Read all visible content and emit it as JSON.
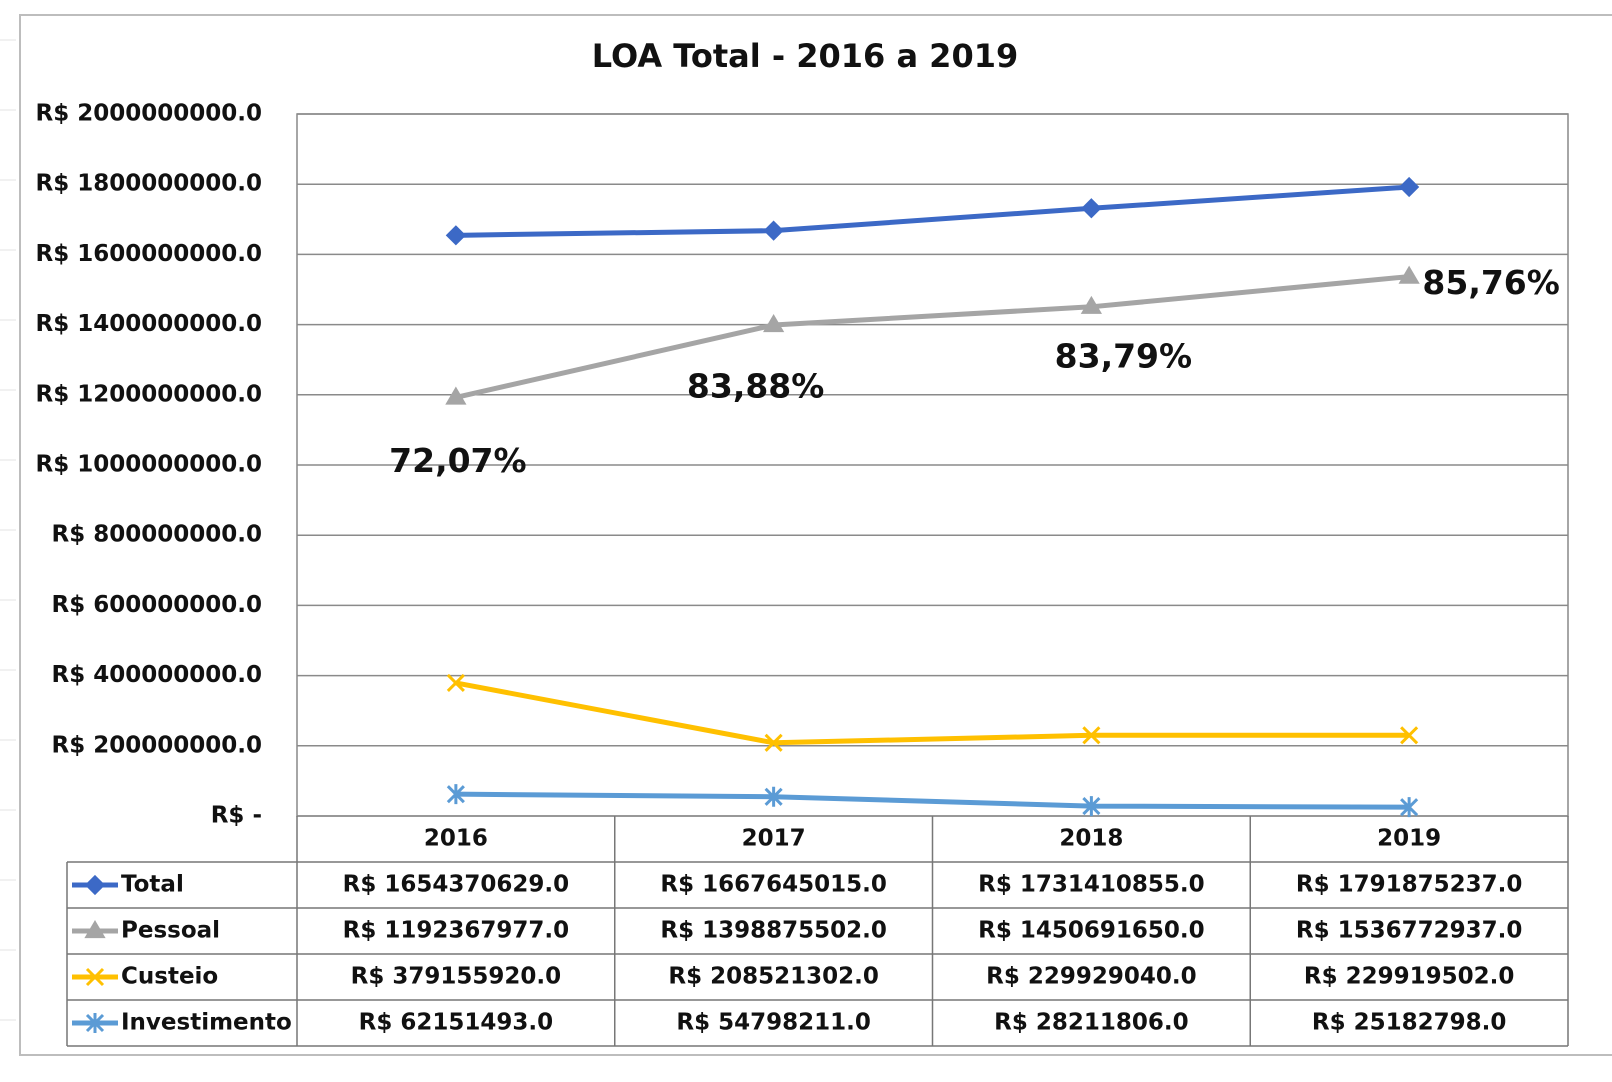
{
  "chart_data": {
    "type": "line",
    "title": "LOA Total - 2016 a 2019",
    "categories": [
      "2016",
      "2017",
      "2018",
      "2019"
    ],
    "series": [
      {
        "name": "Total",
        "color": "#3c69c6",
        "marker": "diamond",
        "values": [
          1654370629,
          1667645015,
          1731410855,
          1791875237
        ],
        "value_labels": [
          "R$ 1654370629.0",
          "R$ 1667645015.0",
          "R$ 1731410855.0",
          "R$ 1791875237.0"
        ]
      },
      {
        "name": "Pessoal",
        "color": "#a5a5a5",
        "marker": "triangle",
        "values": [
          1192367977,
          1398875502,
          1450691650,
          1536772937
        ],
        "value_labels": [
          "R$ 1192367977.0",
          "R$ 1398875502.0",
          "R$ 1450691650.0",
          "R$ 1536772937.0"
        ]
      },
      {
        "name": "Custeio",
        "color": "#ffc000",
        "marker": "x",
        "values": [
          379155920,
          208521302,
          229929040,
          229919502
        ],
        "value_labels": [
          "R$ 379155920.0",
          "R$ 208521302.0",
          "R$ 229929040.0",
          "R$ 229919502.0"
        ]
      },
      {
        "name": "Investimento",
        "color": "#5b9bd5",
        "marker": "star",
        "values": [
          62151493,
          54798211,
          28211806,
          25182798
        ],
        "value_labels": [
          "R$ 62151493.0",
          "R$ 54798211.0",
          "R$ 28211806.0",
          "R$ 25182798.0"
        ]
      }
    ],
    "annotations": [
      "72,07%",
      "83,88%",
      "83,79%",
      "85,76%"
    ],
    "ylim": [
      0,
      2000000000
    ],
    "yticks": [
      {
        "value": 0,
        "label": "R$ -"
      },
      {
        "value": 200000000,
        "label": "R$ 200000000.0"
      },
      {
        "value": 400000000,
        "label": "R$ 400000000.0"
      },
      {
        "value": 600000000,
        "label": "R$ 600000000.0"
      },
      {
        "value": 800000000,
        "label": "R$ 800000000.0"
      },
      {
        "value": 1000000000,
        "label": "R$ 1000000000.0"
      },
      {
        "value": 1200000000,
        "label": "R$ 1200000000.0"
      },
      {
        "value": 1400000000,
        "label": "R$ 1400000000.0"
      },
      {
        "value": 1600000000,
        "label": "R$ 1600000000.0"
      },
      {
        "value": 1800000000,
        "label": "R$ 1800000000.0"
      },
      {
        "value": 2000000000,
        "label": "R$ 2000000000.0"
      }
    ],
    "grid": true,
    "data_table": true
  }
}
